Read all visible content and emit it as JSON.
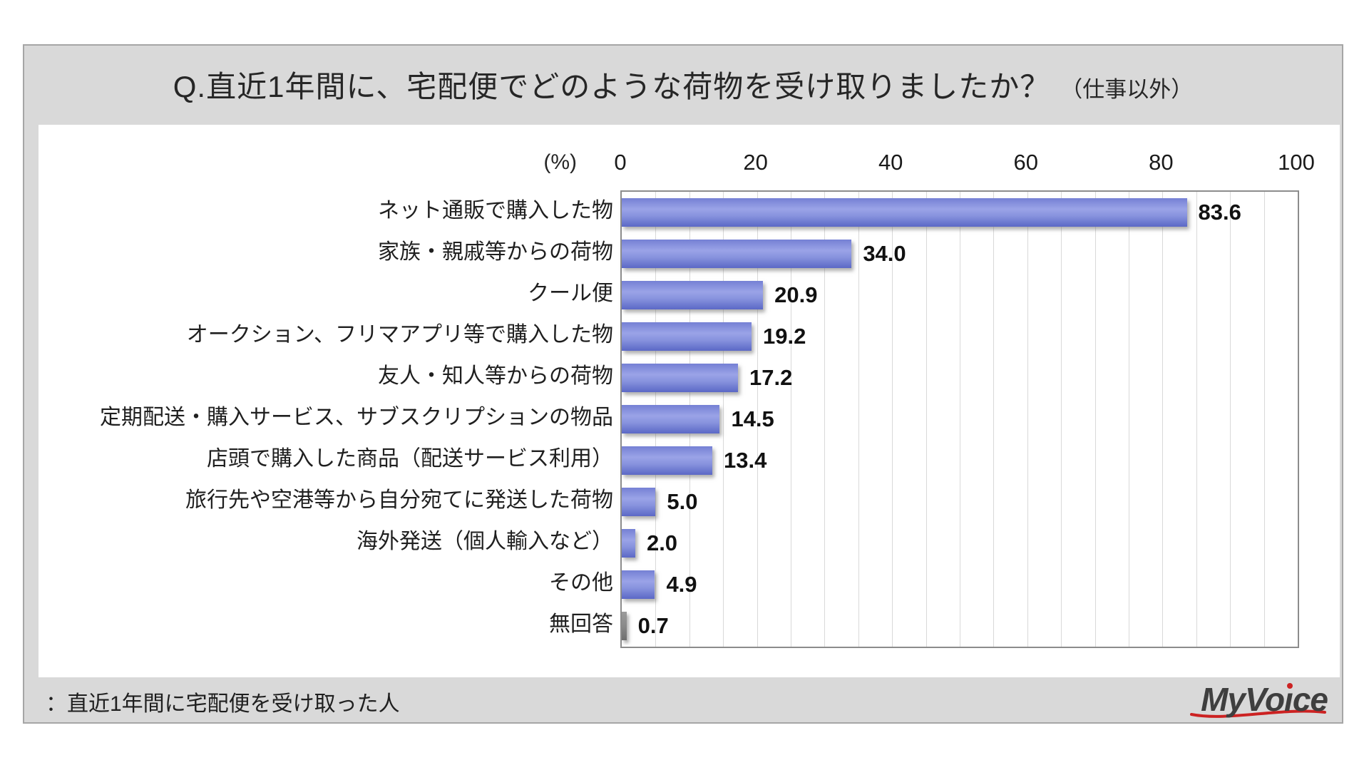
{
  "title": {
    "main": "Q.直近1年間に、宅配便でどのような荷物を受け取りましたか？",
    "suffix": "（仕事以外）"
  },
  "axis": {
    "unit_label": "(%)",
    "ticks": [
      "0",
      "20",
      "40",
      "60",
      "80",
      "100"
    ],
    "min": 0,
    "max": 100,
    "minor_gridline_step": 5
  },
  "chart_data": {
    "type": "bar",
    "orientation": "horizontal",
    "title": "Q.直近1年間に、宅配便でどのような荷物を受け取りましたか？（仕事以外）",
    "xlabel": "(%)",
    "xlim": [
      0,
      100
    ],
    "grid": true,
    "categories": [
      "ネット通販で購入した物",
      "家族・親戚等からの荷物",
      "クール便",
      "オークション、フリマアプリ等で購入した物",
      "友人・知人等からの荷物",
      "定期配送・購入サービス、サブスクリプションの物品",
      "店頭で購入した商品（配送サービス利用）",
      "旅行先や空港等から自分宛てに発送した荷物",
      "海外発送（個人輸入など）",
      "その他",
      "無回答"
    ],
    "values": [
      83.6,
      34.0,
      20.9,
      19.2,
      17.2,
      14.5,
      13.4,
      5.0,
      2.0,
      4.9,
      0.7
    ],
    "gray_bar_indices": [
      10
    ],
    "bar_color": "#7c88d8",
    "gray_bar_color": "#808080"
  },
  "footer": {
    "note": "：直近1年間に宅配便を受け取った人",
    "logo": "MyVoice"
  },
  "colors": {
    "panel_background": "#d9d9d9",
    "panel_border": "#a6a6a6",
    "plot_border": "#8c8c8c",
    "gridline": "#d9d9d9",
    "text": "#262626",
    "logo_accent": "#cc2222"
  }
}
